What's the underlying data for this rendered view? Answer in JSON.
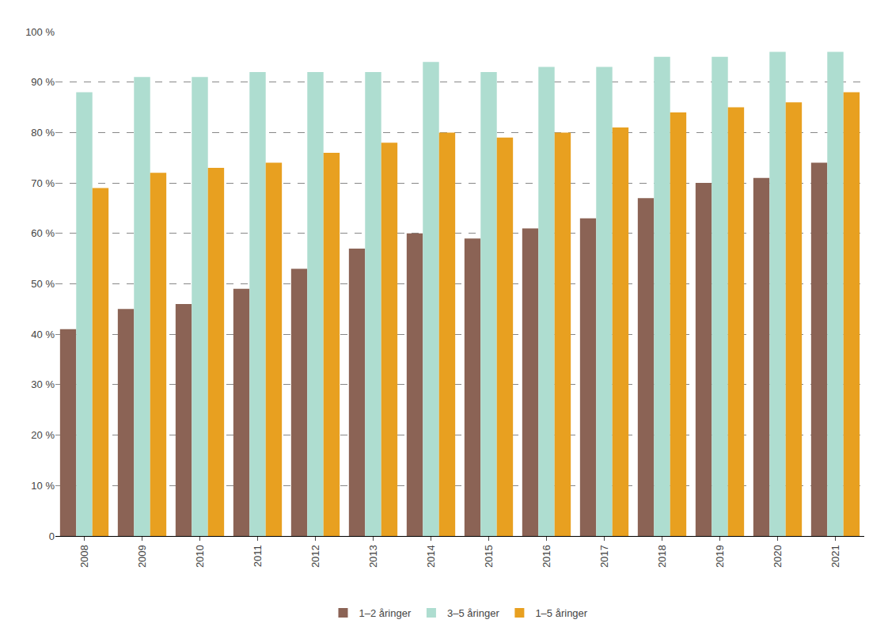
{
  "chart_data": {
    "type": "bar",
    "categories": [
      "2008",
      "2009",
      "2010",
      "2011",
      "2012",
      "2013",
      "2014",
      "2015",
      "2016",
      "2017",
      "2018",
      "2019",
      "2020",
      "2021"
    ],
    "series": [
      {
        "name": "1–2 åringer",
        "color": "#8B6355",
        "values": [
          41,
          45,
          46,
          49,
          53,
          57,
          60,
          59,
          61,
          63,
          67,
          70,
          71,
          74
        ]
      },
      {
        "name": "3–5 åringer",
        "color": "#AEDDD0",
        "values": [
          88,
          91,
          91,
          92,
          92,
          92,
          94,
          92,
          93,
          93,
          95,
          95,
          96,
          96
        ]
      },
      {
        "name": "1–5 åringer",
        "color": "#E8A020",
        "values": [
          69,
          72,
          73,
          74,
          76,
          78,
          80,
          79,
          80,
          81,
          84,
          85,
          86,
          88
        ]
      }
    ],
    "ylim": [
      0,
      100
    ],
    "yticks": [
      0,
      {
        "value": 10,
        "label": "10 %"
      },
      {
        "value": 20,
        "label": "20 %"
      },
      {
        "value": 30,
        "label": "30 %"
      },
      {
        "value": 40,
        "label": "40 %"
      },
      {
        "value": 50,
        "label": "50 %"
      },
      {
        "value": 60,
        "label": "60 %"
      },
      {
        "value": 70,
        "label": "70 %"
      },
      {
        "value": 80,
        "label": "80 %"
      },
      {
        "value": 90,
        "label": "90 %"
      },
      {
        "value": 100,
        "label": "100 %"
      }
    ],
    "grid": true,
    "legend": "bottom"
  }
}
